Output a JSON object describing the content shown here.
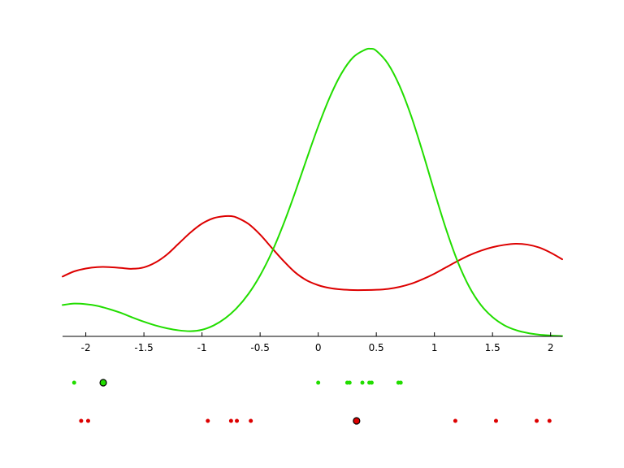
{
  "chart_data": {
    "type": "line",
    "title": "",
    "xlabel": "",
    "ylabel": "",
    "xlim": [
      -2.2,
      2.1
    ],
    "ylim": [
      0,
      1
    ],
    "grid": false,
    "legend": "none",
    "x_ticks": [
      -2,
      -1.5,
      -1,
      -0.5,
      0,
      0.5,
      1,
      1.5,
      2
    ],
    "x_tick_labels": [
      "-2",
      "-1.5",
      "-1",
      "-0.5",
      "0",
      "0.5",
      "1",
      "1.5",
      "2"
    ],
    "series": [
      {
        "color": "#dd0000",
        "x": [
          -2.2,
          -2.1,
          -2.0,
          -1.9,
          -1.8,
          -1.7,
          -1.6,
          -1.5,
          -1.4,
          -1.3,
          -1.2,
          -1.1,
          -1.0,
          -0.9,
          -0.8,
          -0.75,
          -0.7,
          -0.6,
          -0.5,
          -0.4,
          -0.3,
          -0.2,
          -0.1,
          0.0,
          0.1,
          0.2,
          0.3,
          0.4,
          0.5,
          0.6,
          0.7,
          0.8,
          0.9,
          1.0,
          1.1,
          1.2,
          1.3,
          1.4,
          1.5,
          1.6,
          1.7,
          1.8,
          1.9,
          2.0,
          2.1
        ],
        "y": [
          0.208,
          0.226,
          0.236,
          0.241,
          0.241,
          0.238,
          0.235,
          0.24,
          0.257,
          0.285,
          0.323,
          0.361,
          0.392,
          0.411,
          0.418,
          0.418,
          0.413,
          0.391,
          0.354,
          0.308,
          0.263,
          0.223,
          0.195,
          0.178,
          0.168,
          0.163,
          0.161,
          0.161,
          0.162,
          0.165,
          0.172,
          0.183,
          0.199,
          0.218,
          0.24,
          0.262,
          0.282,
          0.298,
          0.31,
          0.318,
          0.322,
          0.319,
          0.309,
          0.291,
          0.268
        ]
      },
      {
        "color": "#22dd00",
        "x": [
          -2.2,
          -2.1,
          -2.0,
          -1.9,
          -1.8,
          -1.7,
          -1.6,
          -1.5,
          -1.4,
          -1.3,
          -1.2,
          -1.1,
          -1.0,
          -0.9,
          -0.8,
          -0.7,
          -0.6,
          -0.5,
          -0.4,
          -0.3,
          -0.2,
          -0.1,
          0.0,
          0.1,
          0.2,
          0.3,
          0.4,
          0.45,
          0.5,
          0.6,
          0.7,
          0.8,
          0.9,
          1.0,
          1.1,
          1.2,
          1.3,
          1.4,
          1.5,
          1.6,
          1.7,
          1.8,
          1.9,
          2.0,
          2.1
        ],
        "y": [
          0.109,
          0.114,
          0.112,
          0.106,
          0.095,
          0.082,
          0.066,
          0.051,
          0.038,
          0.028,
          0.021,
          0.018,
          0.023,
          0.038,
          0.063,
          0.099,
          0.148,
          0.212,
          0.292,
          0.389,
          0.499,
          0.616,
          0.73,
          0.832,
          0.914,
          0.97,
          0.996,
          1.0,
          0.993,
          0.948,
          0.871,
          0.766,
          0.639,
          0.503,
          0.373,
          0.26,
          0.172,
          0.109,
          0.067,
          0.039,
          0.022,
          0.012,
          0.006,
          0.003,
          0.001
        ]
      }
    ],
    "points": [
      {
        "color": "#22dd00",
        "x": [
          -2.1,
          0.0,
          0.25,
          0.27,
          0.38,
          0.44,
          0.46,
          0.69,
          0.71
        ],
        "highlight": -1.85
      },
      {
        "color": "#dd0000",
        "x": [
          -2.04,
          -1.98,
          -0.95,
          -0.75,
          -0.7,
          -0.58,
          1.18,
          1.53,
          1.88,
          1.99
        ],
        "highlight": 0.33
      }
    ]
  }
}
